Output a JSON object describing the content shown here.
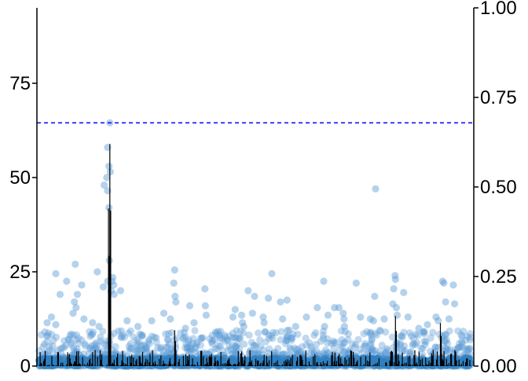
{
  "chart_data": {
    "type": "scatter",
    "title": "",
    "xlabel": "",
    "ylabel_left": "",
    "ylabel_right": "",
    "left_axis": {
      "ylim": [
        0,
        95
      ],
      "ticks": [
        0,
        25,
        50,
        75
      ],
      "tick_labels": [
        "0",
        "25",
        "50",
        "75"
      ]
    },
    "right_axis": {
      "ylim": [
        0,
        1.0
      ],
      "ticks": [
        0,
        0.25,
        0.5,
        0.75,
        1.0
      ],
      "tick_labels": [
        "0.00",
        "0.25",
        "0.50",
        "0.75",
        "1.00"
      ]
    },
    "x_ticks": "none",
    "grid": false,
    "legend": "none",
    "threshold": {
      "value": 64.5,
      "axis": "left",
      "style": "dashed",
      "color": "#0000ff"
    },
    "points": {
      "color": "#5b9bd5",
      "opacity": 0.38,
      "notable_points": [
        {
          "x": 0.165,
          "y": 64.5
        },
        {
          "x": 0.16,
          "y": 58.0
        },
        {
          "x": 0.163,
          "y": 53.0
        },
        {
          "x": 0.166,
          "y": 51.5
        },
        {
          "x": 0.158,
          "y": 50.0
        },
        {
          "x": 0.152,
          "y": 48.0
        },
        {
          "x": 0.16,
          "y": 46.5
        },
        {
          "x": 0.163,
          "y": 42.0
        },
        {
          "x": 0.164,
          "y": 28.0
        },
        {
          "x": 0.172,
          "y": 23.5
        },
        {
          "x": 0.17,
          "y": 22.5
        },
        {
          "x": 0.16,
          "y": 22.5
        },
        {
          "x": 0.174,
          "y": 21.5
        },
        {
          "x": 0.168,
          "y": 20.0
        },
        {
          "x": 0.175,
          "y": 19.0
        },
        {
          "x": 0.19,
          "y": 20.0
        },
        {
          "x": 0.15,
          "y": 21.0
        },
        {
          "x": 0.136,
          "y": 25.0
        },
        {
          "x": 0.085,
          "y": 27.0
        },
        {
          "x": 0.04,
          "y": 24.5
        },
        {
          "x": 0.065,
          "y": 22.5
        },
        {
          "x": 0.09,
          "y": 19.0
        },
        {
          "x": 0.1,
          "y": 21.5
        },
        {
          "x": 0.05,
          "y": 19.0
        },
        {
          "x": 0.083,
          "y": 17.0
        },
        {
          "x": 0.087,
          "y": 15.5
        },
        {
          "x": 0.08,
          "y": 14.0
        },
        {
          "x": 0.02,
          "y": 11.5
        },
        {
          "x": 0.03,
          "y": 13.0
        },
        {
          "x": 0.04,
          "y": 11.0
        },
        {
          "x": 0.105,
          "y": 12.5
        },
        {
          "x": 0.125,
          "y": 11.5
        },
        {
          "x": 0.14,
          "y": 10.5
        },
        {
          "x": 0.205,
          "y": 12.0
        },
        {
          "x": 0.23,
          "y": 10.5
        },
        {
          "x": 0.262,
          "y": 12.0
        },
        {
          "x": 0.315,
          "y": 25.5
        },
        {
          "x": 0.313,
          "y": 22.0
        },
        {
          "x": 0.316,
          "y": 18.5
        },
        {
          "x": 0.318,
          "y": 17.0
        },
        {
          "x": 0.29,
          "y": 14.0
        },
        {
          "x": 0.305,
          "y": 12.5
        },
        {
          "x": 0.35,
          "y": 16.0
        },
        {
          "x": 0.385,
          "y": 20.5
        },
        {
          "x": 0.386,
          "y": 16.0
        },
        {
          "x": 0.388,
          "y": 13.5
        },
        {
          "x": 0.36,
          "y": 11.5
        },
        {
          "x": 0.34,
          "y": 10.0
        },
        {
          "x": 0.41,
          "y": 9.0
        },
        {
          "x": 0.45,
          "y": 13.0
        },
        {
          "x": 0.455,
          "y": 15.0
        },
        {
          "x": 0.47,
          "y": 13.5
        },
        {
          "x": 0.472,
          "y": 11.5
        },
        {
          "x": 0.475,
          "y": 10.5
        },
        {
          "x": 0.485,
          "y": 20.0
        },
        {
          "x": 0.495,
          "y": 14.0
        },
        {
          "x": 0.5,
          "y": 18.5
        },
        {
          "x": 0.52,
          "y": 13.0
        },
        {
          "x": 0.522,
          "y": 11.5
        },
        {
          "x": 0.525,
          "y": 9.0
        },
        {
          "x": 0.532,
          "y": 18.0
        },
        {
          "x": 0.54,
          "y": 24.5
        },
        {
          "x": 0.56,
          "y": 17.0
        },
        {
          "x": 0.575,
          "y": 17.5
        },
        {
          "x": 0.58,
          "y": 9.5
        },
        {
          "x": 0.585,
          "y": 7.5
        },
        {
          "x": 0.565,
          "y": 12.5
        },
        {
          "x": 0.595,
          "y": 10.5
        },
        {
          "x": 0.62,
          "y": 13.0
        },
        {
          "x": 0.645,
          "y": 15.5
        },
        {
          "x": 0.66,
          "y": 22.5
        },
        {
          "x": 0.67,
          "y": 13.5
        },
        {
          "x": 0.662,
          "y": 10.5
        },
        {
          "x": 0.685,
          "y": 15.5
        },
        {
          "x": 0.695,
          "y": 15.5
        },
        {
          "x": 0.705,
          "y": 14.0
        },
        {
          "x": 0.707,
          "y": 12.5
        },
        {
          "x": 0.708,
          "y": 10.5
        },
        {
          "x": 0.735,
          "y": 22.0
        },
        {
          "x": 0.745,
          "y": 13.0
        },
        {
          "x": 0.768,
          "y": 12.5
        },
        {
          "x": 0.775,
          "y": 12.0
        },
        {
          "x": 0.778,
          "y": 18.5
        },
        {
          "x": 0.78,
          "y": 47.0
        },
        {
          "x": 0.8,
          "y": 12.5
        },
        {
          "x": 0.822,
          "y": 20.5
        },
        {
          "x": 0.82,
          "y": 16.5
        },
        {
          "x": 0.825,
          "y": 24.0
        },
        {
          "x": 0.826,
          "y": 23.0
        },
        {
          "x": 0.828,
          "y": 15.5
        },
        {
          "x": 0.83,
          "y": 13.5
        },
        {
          "x": 0.845,
          "y": 19.5
        },
        {
          "x": 0.855,
          "y": 13.0
        },
        {
          "x": 0.88,
          "y": 10.0
        },
        {
          "x": 0.92,
          "y": 13.0
        },
        {
          "x": 0.925,
          "y": 12.0
        },
        {
          "x": 0.935,
          "y": 22.5
        },
        {
          "x": 0.938,
          "y": 22.0
        },
        {
          "x": 0.942,
          "y": 17.0
        },
        {
          "x": 0.95,
          "y": 12.5
        },
        {
          "x": 0.96,
          "y": 21.5
        },
        {
          "x": 0.963,
          "y": 16.5
        },
        {
          "x": 0.9,
          "y": 11.0
        },
        {
          "x": 0.235,
          "y": 8.5
        },
        {
          "x": 0.38,
          "y": 7.5
        }
      ]
    },
    "black_trace": {
      "color": "#000000",
      "peaks": [
        {
          "x": 0.165,
          "y": 0.62,
          "axis": "right"
        },
        {
          "x": 0.162,
          "y": 0.44,
          "axis": "right"
        },
        {
          "x": 0.315,
          "y": 0.1,
          "axis": "right"
        },
        {
          "x": 0.826,
          "y": 0.14,
          "axis": "right"
        },
        {
          "x": 0.93,
          "y": 0.12,
          "axis": "right"
        }
      ]
    }
  }
}
